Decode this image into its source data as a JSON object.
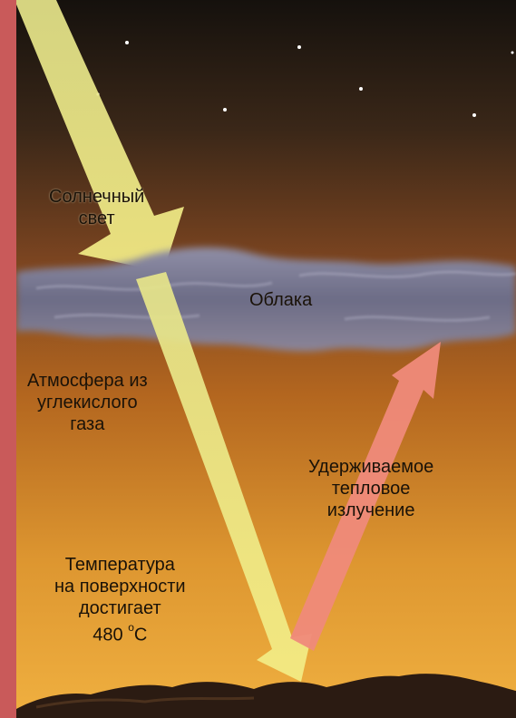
{
  "labels": {
    "sunlight": [
      "Солнечный",
      "свет"
    ],
    "clouds": "Облака",
    "atmosphere": [
      "Атмосфера из",
      "углекислого",
      "газа"
    ],
    "heat": [
      "Удерживаемое",
      "тепловое",
      "излучение"
    ],
    "temperature": [
      "Температура",
      "на поверхности",
      "достигает"
    ],
    "temperature_value": "480",
    "temperature_unit_deg": "o",
    "temperature_unit": "C"
  },
  "colors": {
    "sky_top": "#1a1510",
    "sky_mid": "#6b3e1e",
    "atmosphere_bottom": "#e8a030",
    "clouds": "#7d7f95",
    "sun_arrow": "#e8e880",
    "heat_arrow": "#ef8a7a",
    "left_border": "#c95a5a",
    "ground": "#2a1a12"
  },
  "icons": [
    "sunlight-arrow",
    "heat-radiation-arrow",
    "star-icon",
    "cloud-layer",
    "ground-surface"
  ]
}
